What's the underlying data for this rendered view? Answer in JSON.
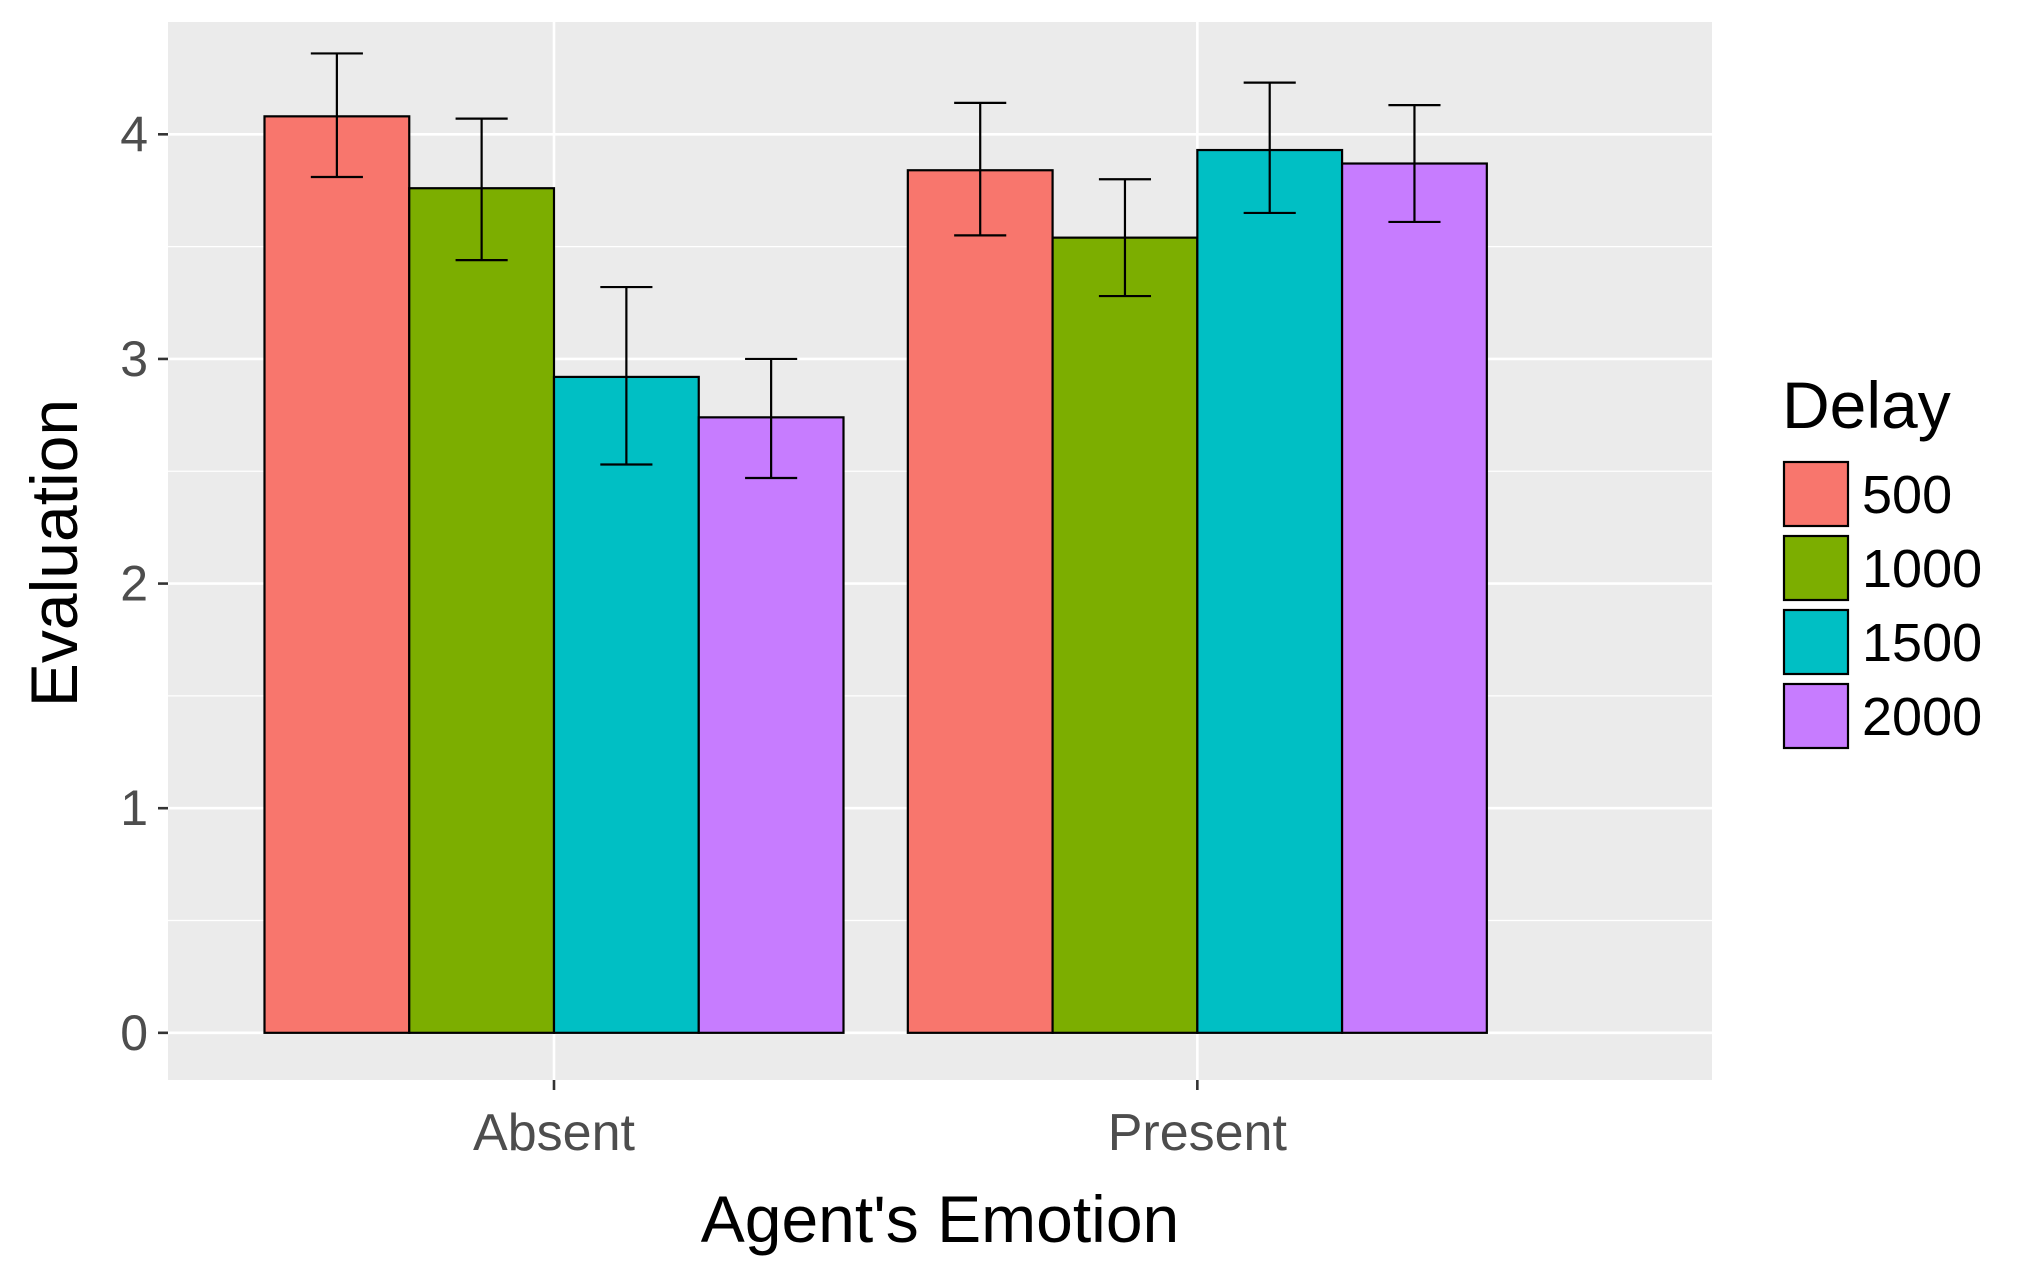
{
  "chart_data": {
    "type": "bar",
    "categories": [
      "Absent",
      "Present"
    ],
    "series": [
      {
        "name": "500",
        "color": "#F8766D",
        "values": [
          4.08,
          3.84
        ],
        "error_low": [
          3.81,
          3.55
        ],
        "error_high": [
          4.36,
          4.14
        ]
      },
      {
        "name": "1000",
        "color": "#7CAE00",
        "values": [
          3.76,
          3.54
        ],
        "error_low": [
          3.44,
          3.28
        ],
        "error_high": [
          4.07,
          3.8
        ]
      },
      {
        "name": "1500",
        "color": "#00BFC4",
        "values": [
          2.92,
          3.93
        ],
        "error_low": [
          2.53,
          3.65
        ],
        "error_high": [
          3.32,
          4.23
        ]
      },
      {
        "name": "2000",
        "color": "#C77CFF",
        "values": [
          2.74,
          3.87
        ],
        "error_low": [
          2.47,
          3.61
        ],
        "error_high": [
          3.0,
          4.13
        ]
      }
    ],
    "title": "",
    "xlabel": "Agent's Emotion",
    "ylabel": "Evaluation",
    "ylim": [
      -0.21,
      4.5
    ],
    "yticks": [
      "0",
      "1",
      "2",
      "3",
      "4"
    ],
    "legend": {
      "title": "Delay",
      "position": "right"
    },
    "grid": true,
    "panel_color": "#EBEBEB"
  }
}
